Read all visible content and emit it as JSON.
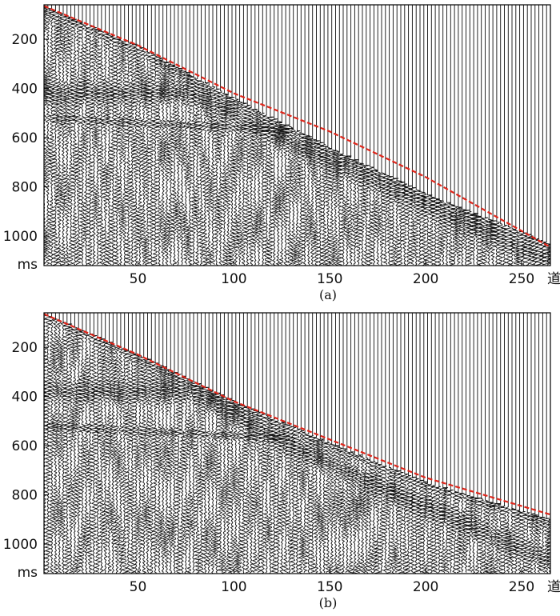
{
  "chart_data": [
    {
      "type": "seismic-wiggle",
      "panel_label": "(a)",
      "xlabel": "道",
      "ylabel": "ms",
      "x_ticks": [
        50,
        100,
        150,
        200,
        250
      ],
      "y_ticks": [
        200,
        400,
        600,
        800,
        1000
      ],
      "xlim": [
        1,
        265
      ],
      "ylim": [
        60,
        1120
      ],
      "pick_line": {
        "color": "#e0261b",
        "style": "dashed",
        "points": [
          [
            1,
            65
          ],
          [
            50,
            225
          ],
          [
            100,
            420
          ],
          [
            150,
            575
          ],
          [
            200,
            760
          ],
          [
            265,
            1045
          ]
        ]
      },
      "first_break": {
        "points": [
          [
            1,
            65
          ],
          [
            50,
            230
          ],
          [
            100,
            440
          ],
          [
            150,
            640
          ],
          [
            200,
            830
          ],
          [
            265,
            1030
          ]
        ]
      },
      "strong_event": {
        "points": [
          [
            80,
            420
          ],
          [
            130,
            620
          ],
          [
            180,
            800
          ],
          [
            265,
            1100
          ]
        ]
      },
      "grid": false
    },
    {
      "type": "seismic-wiggle",
      "panel_label": "(b)",
      "xlabel": "道",
      "ylabel": "ms",
      "x_ticks": [
        50,
        100,
        150,
        200,
        250
      ],
      "y_ticks": [
        200,
        400,
        600,
        800,
        1000
      ],
      "xlim": [
        1,
        265
      ],
      "ylim": [
        60,
        1120
      ],
      "pick_line": {
        "color": "#e0261b",
        "style": "dashed",
        "points": [
          [
            1,
            65
          ],
          [
            50,
            230
          ],
          [
            100,
            420
          ],
          [
            150,
            575
          ],
          [
            200,
            730
          ],
          [
            265,
            880
          ]
        ]
      },
      "first_break": {
        "points": [
          [
            1,
            65
          ],
          [
            50,
            230
          ],
          [
            100,
            420
          ],
          [
            150,
            590
          ],
          [
            200,
            750
          ],
          [
            265,
            900
          ]
        ]
      },
      "strong_event": {
        "points": [
          [
            80,
            380
          ],
          [
            130,
            600
          ],
          [
            180,
            780
          ],
          [
            265,
            1070
          ]
        ]
      },
      "grid": false
    }
  ],
  "colors": {
    "trace": "#111111",
    "pick": "#e0261b",
    "axis": "#000000"
  }
}
